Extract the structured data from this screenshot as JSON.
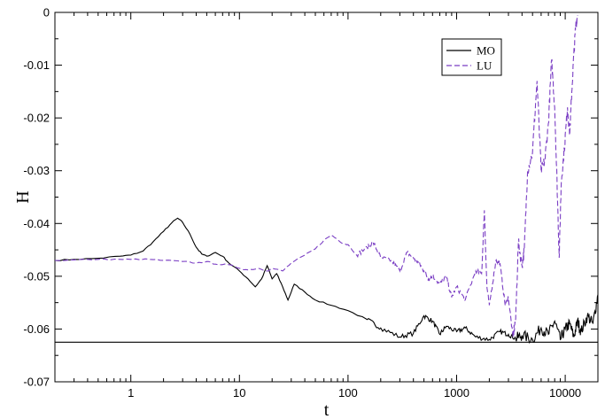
{
  "chart_data": {
    "type": "line",
    "title": "",
    "xlabel": "t",
    "ylabel": "H",
    "xscale": "log",
    "xlim": [
      0.2,
      20000
    ],
    "ylim": [
      -0.07,
      0
    ],
    "x_ticks": [
      1,
      10,
      100,
      1000,
      10000
    ],
    "x_tick_labels": [
      "1",
      "10",
      "100",
      "1000",
      "10000"
    ],
    "y_ticks": [
      0,
      -0.01,
      -0.02,
      -0.03,
      -0.04,
      -0.05,
      -0.06,
      -0.07
    ],
    "y_tick_labels": [
      "0",
      "-0.01",
      "-0.02",
      "-0.03",
      "-0.04",
      "-0.05",
      "-0.06",
      "-0.07"
    ],
    "grid": false,
    "legend_position": "top-right",
    "reference_line": {
      "y": -0.0625,
      "color": "#000000"
    },
    "series": [
      {
        "name": "MO",
        "color": "#000000",
        "dash": "solid",
        "points": [
          [
            0.2,
            -0.047
          ],
          [
            0.3,
            -0.0468
          ],
          [
            0.5,
            -0.0466
          ],
          [
            0.8,
            -0.0462
          ],
          [
            1.0,
            -0.046
          ],
          [
            1.3,
            -0.0452
          ],
          [
            1.6,
            -0.0435
          ],
          [
            2.0,
            -0.0415
          ],
          [
            2.4,
            -0.0398
          ],
          [
            2.7,
            -0.039
          ],
          [
            3.0,
            -0.0398
          ],
          [
            3.5,
            -0.042
          ],
          [
            4.0,
            -0.0445
          ],
          [
            4.5,
            -0.0458
          ],
          [
            5.0,
            -0.0462
          ],
          [
            6.0,
            -0.0455
          ],
          [
            7.0,
            -0.0462
          ],
          [
            8.0,
            -0.0475
          ],
          [
            10.0,
            -0.049
          ],
          [
            12.0,
            -0.0505
          ],
          [
            14.0,
            -0.052
          ],
          [
            16.0,
            -0.0505
          ],
          [
            18.0,
            -0.048
          ],
          [
            20.0,
            -0.0505
          ],
          [
            22.0,
            -0.0495
          ],
          [
            25.0,
            -0.052
          ],
          [
            28.0,
            -0.0545
          ],
          [
            32.0,
            -0.0515
          ],
          [
            40.0,
            -0.053
          ],
          [
            50.0,
            -0.0545
          ],
          [
            70.0,
            -0.0555
          ],
          [
            100.0,
            -0.0565
          ],
          [
            150.0,
            -0.0582
          ],
          [
            200.0,
            -0.0598
          ],
          [
            300.0,
            -0.0615
          ],
          [
            400.0,
            -0.0608
          ],
          [
            500.0,
            -0.0575
          ],
          [
            600.0,
            -0.0585
          ],
          [
            700.0,
            -0.061
          ],
          [
            800.0,
            -0.0595
          ],
          [
            1000.0,
            -0.0605
          ],
          [
            1200.0,
            -0.0598
          ],
          [
            1500.0,
            -0.0615
          ],
          [
            2000.0,
            -0.062
          ],
          [
            2500.0,
            -0.0605
          ],
          [
            3000.0,
            -0.061
          ],
          [
            3500.0,
            -0.0618
          ],
          [
            4000.0,
            -0.0612
          ],
          [
            5000.0,
            -0.062
          ],
          [
            6000.0,
            -0.0598
          ],
          [
            7000.0,
            -0.061
          ],
          [
            8000.0,
            -0.0585
          ],
          [
            9000.0,
            -0.062
          ],
          [
            10000.0,
            -0.06
          ],
          [
            11000.0,
            -0.059
          ],
          [
            12000.0,
            -0.0615
          ],
          [
            13000.0,
            -0.0585
          ],
          [
            14000.0,
            -0.0605
          ],
          [
            16000.0,
            -0.0575
          ],
          [
            18000.0,
            -0.059
          ],
          [
            20000.0,
            -0.0535
          ]
        ]
      },
      {
        "name": "LU",
        "color": "#7b3fc4",
        "dash": "dashed",
        "points": [
          [
            0.2,
            -0.047
          ],
          [
            0.3,
            -0.0469
          ],
          [
            0.5,
            -0.0468
          ],
          [
            0.8,
            -0.0468
          ],
          [
            1.0,
            -0.0468
          ],
          [
            1.5,
            -0.0468
          ],
          [
            2.0,
            -0.047
          ],
          [
            3.0,
            -0.0472
          ],
          [
            4.0,
            -0.0475
          ],
          [
            5.0,
            -0.0472
          ],
          [
            6.0,
            -0.0477
          ],
          [
            8.0,
            -0.0478
          ],
          [
            10.0,
            -0.0485
          ],
          [
            12.0,
            -0.0488
          ],
          [
            15.0,
            -0.0485
          ],
          [
            18.0,
            -0.049
          ],
          [
            20.0,
            -0.0485
          ],
          [
            25.0,
            -0.049
          ],
          [
            30.0,
            -0.0475
          ],
          [
            40.0,
            -0.046
          ],
          [
            50.0,
            -0.0448
          ],
          [
            60.0,
            -0.0432
          ],
          [
            70.0,
            -0.0422
          ],
          [
            80.0,
            -0.043
          ],
          [
            90.0,
            -0.0438
          ],
          [
            100.0,
            -0.044
          ],
          [
            120.0,
            -0.046
          ],
          [
            150.0,
            -0.0445
          ],
          [
            170.0,
            -0.0435
          ],
          [
            200.0,
            -0.0465
          ],
          [
            250.0,
            -0.047
          ],
          [
            300.0,
            -0.049
          ],
          [
            350.0,
            -0.0455
          ],
          [
            400.0,
            -0.0465
          ],
          [
            450.0,
            -0.0475
          ],
          [
            500.0,
            -0.049
          ],
          [
            550.0,
            -0.0505
          ],
          [
            600.0,
            -0.05
          ],
          [
            700.0,
            -0.0515
          ],
          [
            800.0,
            -0.05
          ],
          [
            900.0,
            -0.054
          ],
          [
            1000.0,
            -0.052
          ],
          [
            1200.0,
            -0.0545
          ],
          [
            1500.0,
            -0.049
          ],
          [
            1700.0,
            -0.0495
          ],
          [
            1800.0,
            -0.0375
          ],
          [
            1900.0,
            -0.052
          ],
          [
            2000.0,
            -0.0555
          ],
          [
            2300.0,
            -0.047
          ],
          [
            2500.0,
            -0.0475
          ],
          [
            2800.0,
            -0.0555
          ],
          [
            3000.0,
            -0.054
          ],
          [
            3300.0,
            -0.0615
          ],
          [
            3500.0,
            -0.058
          ],
          [
            3700.0,
            -0.0435
          ],
          [
            4000.0,
            -0.048
          ],
          [
            4200.0,
            -0.045
          ],
          [
            4500.0,
            -0.03
          ],
          [
            5000.0,
            -0.0265
          ],
          [
            5500.0,
            -0.013
          ],
          [
            6000.0,
            -0.03
          ],
          [
            6500.0,
            -0.028
          ],
          [
            7000.0,
            -0.021
          ],
          [
            7500.0,
            -0.009
          ],
          [
            8000.0,
            -0.018
          ],
          [
            8500.0,
            -0.0355
          ],
          [
            8800.0,
            -0.0465
          ],
          [
            9200.0,
            -0.032
          ],
          [
            9800.0,
            -0.026
          ],
          [
            10500.0,
            -0.018
          ],
          [
            11000.0,
            -0.023
          ],
          [
            11500.0,
            -0.015
          ],
          [
            12000.0,
            -0.008
          ],
          [
            12500.0,
            -0.0025
          ],
          [
            13000.0,
            -0.0005
          ]
        ]
      }
    ]
  }
}
